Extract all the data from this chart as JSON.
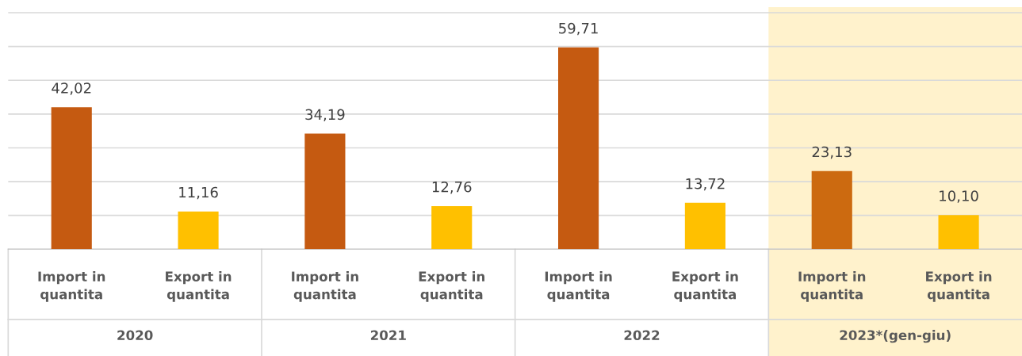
{
  "chart_data": {
    "type": "bar",
    "categories": [
      "Import in\nquantita",
      "Export in\nquantita",
      "Import in\nquantita",
      "Export in\nquantita",
      "Import in\nquantita",
      "Export in\nquantita",
      "Import in\nquantita",
      "Export in\nquantita"
    ],
    "values": [
      42.02,
      11.16,
      34.19,
      12.76,
      59.71,
      13.72,
      23.13,
      10.1
    ],
    "colors": [
      "#c55a11",
      "#ffc000",
      "#c55a11",
      "#ffc000",
      "#c55a11",
      "#ffc000",
      "#cc6a10",
      "#ffc000"
    ],
    "value_labels": [
      "42,02",
      "11,16",
      "34,19",
      "12,76",
      "59,71",
      "13,72",
      "23,13",
      "10,10"
    ],
    "annotations": [
      "2020",
      "2021",
      "2022",
      "2023*(gen-giu)"
    ],
    "grid": "y",
    "legend": false
  }
}
